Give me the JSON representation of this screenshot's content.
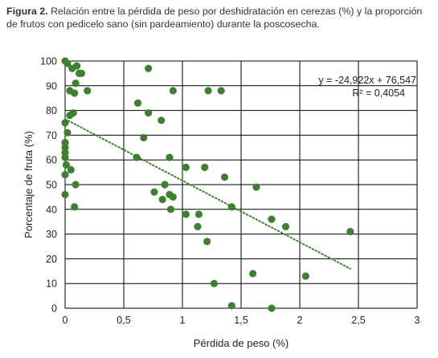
{
  "caption": {
    "lead": "Figura 2.",
    "text": " Relación entre la pérdida de peso por deshidratación en cerezas (%) y la proporción de frutos con pedicelo sano (sin pardeamiento) durante la poscosecha."
  },
  "colors": {
    "point": "#3f7f32",
    "trendline": "#3f7f32",
    "grid": "#000000",
    "text": "#231f20"
  },
  "chart_data": {
    "type": "scatter",
    "title": "",
    "xlabel": "Pérdida de peso (%)",
    "ylabel": "Porcentaje de fruta (%)",
    "xlim": [
      0,
      3
    ],
    "ylim": [
      0,
      100
    ],
    "x_ticks": [
      0,
      0.5,
      1,
      1.5,
      2,
      2.5,
      3
    ],
    "x_tick_labels": [
      "0",
      "0,5",
      "1",
      "1,5",
      "2",
      "2,5",
      "3"
    ],
    "y_ticks": [
      0,
      10,
      20,
      30,
      40,
      50,
      60,
      70,
      80,
      90,
      100
    ],
    "y_tick_labels": [
      "0",
      "10",
      "20",
      "30",
      "40",
      "50",
      "60",
      "70",
      "80",
      "90",
      "100"
    ],
    "grid": true,
    "legend": "none",
    "points": [
      [
        0.0,
        100
      ],
      [
        0.02,
        99
      ],
      [
        0.06,
        97
      ],
      [
        0.1,
        98
      ],
      [
        0.12,
        95
      ],
      [
        0.14,
        95
      ],
      [
        0.09,
        91
      ],
      [
        0.19,
        88
      ],
      [
        0.04,
        88
      ],
      [
        0.08,
        87
      ],
      [
        0.07,
        79
      ],
      [
        0.04,
        78
      ],
      [
        0.0,
        75
      ],
      [
        0.02,
        71
      ],
      [
        0.0,
        67
      ],
      [
        0.0,
        65
      ],
      [
        0.0,
        63
      ],
      [
        0.0,
        61
      ],
      [
        0.01,
        58
      ],
      [
        0.05,
        56
      ],
      [
        0.0,
        54
      ],
      [
        0.09,
        50
      ],
      [
        0.0,
        46
      ],
      [
        0.08,
        41
      ],
      [
        0.71,
        97
      ],
      [
        0.92,
        88
      ],
      [
        1.22,
        88
      ],
      [
        1.33,
        88
      ],
      [
        0.62,
        83
      ],
      [
        0.71,
        79
      ],
      [
        0.82,
        76
      ],
      [
        0.67,
        69
      ],
      [
        0.61,
        61
      ],
      [
        0.89,
        61
      ],
      [
        1.03,
        57
      ],
      [
        1.19,
        57
      ],
      [
        1.36,
        53
      ],
      [
        1.63,
        49
      ],
      [
        0.85,
        50
      ],
      [
        0.76,
        47
      ],
      [
        0.89,
        46
      ],
      [
        0.92,
        45
      ],
      [
        0.83,
        44
      ],
      [
        1.42,
        41
      ],
      [
        0.9,
        40
      ],
      [
        1.03,
        38
      ],
      [
        1.14,
        38
      ],
      [
        1.76,
        36
      ],
      [
        1.88,
        33
      ],
      [
        1.13,
        33
      ],
      [
        2.43,
        31
      ],
      [
        1.21,
        27
      ],
      [
        1.6,
        14
      ],
      [
        2.05,
        13
      ],
      [
        1.27,
        10
      ],
      [
        1.42,
        1
      ],
      [
        1.76,
        0
      ]
    ],
    "trendline": {
      "type": "linear",
      "x_range": [
        0,
        2.43
      ],
      "slope": -24.922,
      "intercept": 76.547
    },
    "annotations": [
      "y = -24,922x + 76,547",
      "R² = 0,4054"
    ]
  }
}
